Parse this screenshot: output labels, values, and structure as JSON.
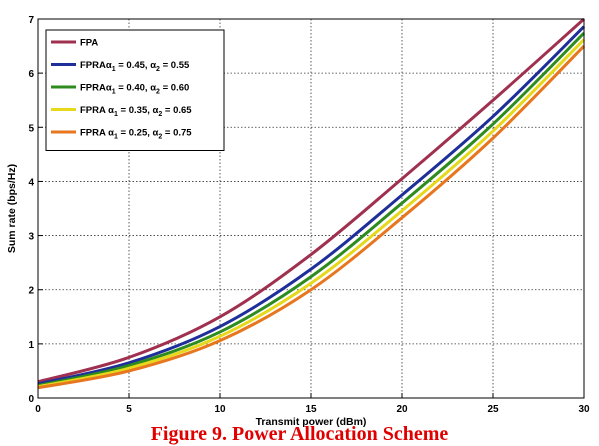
{
  "caption": "Figure 9. Power Allocation Scheme",
  "chart_data": {
    "type": "line",
    "xlabel": "Transmit power (dBm)",
    "ylabel": "Sum rate (bps/Hz)",
    "xlim": [
      0,
      30
    ],
    "ylim": [
      0,
      7
    ],
    "xticks": [
      0,
      5,
      10,
      15,
      20,
      25,
      30
    ],
    "yticks": [
      0,
      1,
      2,
      3,
      4,
      5,
      6,
      7
    ],
    "grid": true,
    "legend_position": "top-left",
    "x": [
      0,
      5,
      10,
      15,
      20,
      25,
      30
    ],
    "series": [
      {
        "name": "FPA",
        "legend": [
          [
            "FPA",
            ""
          ]
        ],
        "color": "#a0304f",
        "values": [
          0.3,
          0.75,
          1.5,
          2.65,
          4.05,
          5.5,
          7.0
        ]
      },
      {
        "name": "FPRAα1 = 0.45, α2 = 0.55",
        "legend": [
          [
            "FPRAα",
            ""
          ],
          [
            "1",
            "sub"
          ],
          [
            " = 0.45, α",
            ""
          ],
          [
            "2",
            "sub"
          ],
          [
            " = 0.55",
            ""
          ]
        ],
        "color": "#1f2f9a",
        "values": [
          0.26,
          0.65,
          1.32,
          2.38,
          3.75,
          5.2,
          6.86
        ]
      },
      {
        "name": "FPRAα1 = 0.40, α2 = 0.60",
        "legend": [
          [
            "FPRAα",
            ""
          ],
          [
            "1",
            "sub"
          ],
          [
            " = 0.40, α",
            ""
          ],
          [
            "2",
            "sub"
          ],
          [
            " = 0.60",
            ""
          ]
        ],
        "color": "#2e8b1e",
        "values": [
          0.23,
          0.6,
          1.22,
          2.24,
          3.6,
          5.06,
          6.74
        ]
      },
      {
        "name": "FPRA α1 = 0.35, α2 = 0.65",
        "legend": [
          [
            "FPRA α",
            ""
          ],
          [
            "1",
            "sub"
          ],
          [
            " = 0.35, α",
            ""
          ],
          [
            "2",
            "sub"
          ],
          [
            " = 0.65",
            ""
          ]
        ],
        "color": "#e6d81a",
        "values": [
          0.21,
          0.55,
          1.14,
          2.12,
          3.46,
          4.93,
          6.62
        ]
      },
      {
        "name": "FPRA α1 = 0.25, α2 = 0.75",
        "legend": [
          [
            "FPRA α",
            ""
          ],
          [
            "1",
            "sub"
          ],
          [
            " = 0.25, α",
            ""
          ],
          [
            "2",
            "sub"
          ],
          [
            " = 0.75",
            ""
          ]
        ],
        "color": "#e8761f",
        "values": [
          0.19,
          0.5,
          1.06,
          2.0,
          3.33,
          4.8,
          6.5
        ]
      }
    ]
  }
}
